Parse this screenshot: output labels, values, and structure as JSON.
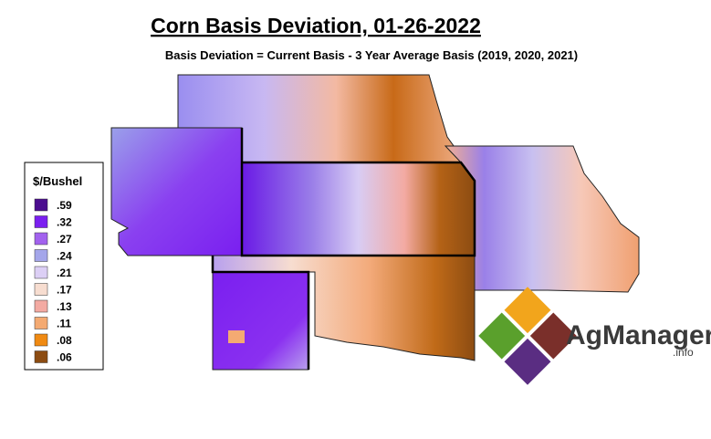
{
  "title": "Corn Basis Deviation, 01-26-2022",
  "subtitle": "Basis Deviation = Current Basis - 3 Year Average Basis (2019, 2020, 2021)",
  "legend": {
    "title": "$/Bushel",
    "items": [
      {
        "label": ".59",
        "color": "#4b0d8f"
      },
      {
        "label": ".32",
        "color": "#7b1ff0"
      },
      {
        "label": ".27",
        "color": "#a262ee"
      },
      {
        "label": ".24",
        "color": "#a4a6ea"
      },
      {
        "label": ".21",
        "color": "#dccff5"
      },
      {
        "label": ".17",
        "color": "#f7ddd0"
      },
      {
        "label": ".13",
        "color": "#f3aaa2"
      },
      {
        "label": ".11",
        "color": "#f4aa72"
      },
      {
        "label": ".08",
        "color": "#f08a12"
      },
      {
        "label": ".06",
        "color": "#8c4c12"
      }
    ]
  },
  "logo": {
    "name": "AgManager",
    "suffix": ".info"
  }
}
